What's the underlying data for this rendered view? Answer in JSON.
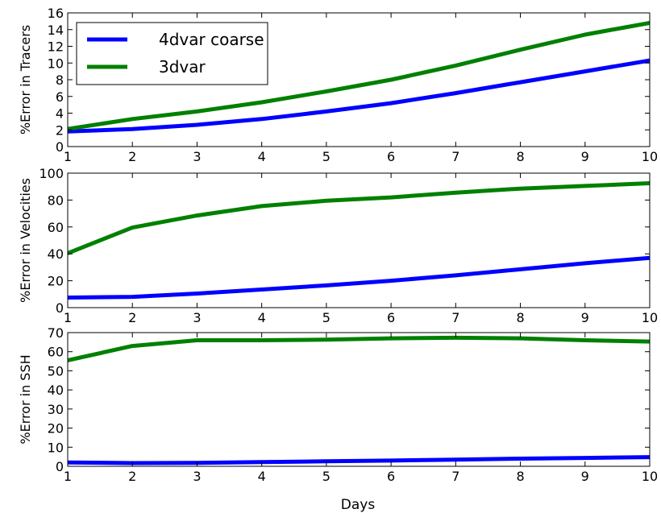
{
  "figure": {
    "x_label": "Days",
    "colors": {
      "4dvar_coarse": "#0000ff",
      "3dvar": "#008000"
    }
  },
  "chart_data": [
    {
      "type": "line",
      "ylabel": "%Error in Tracers",
      "xlabel": "",
      "xlim": [
        1,
        10
      ],
      "ylim": [
        0,
        16
      ],
      "x_ticks": [
        1,
        2,
        3,
        4,
        5,
        6,
        7,
        8,
        9,
        10
      ],
      "y_ticks": [
        0,
        2,
        4,
        6,
        8,
        10,
        12,
        14,
        16
      ],
      "x": [
        1,
        2,
        3,
        4,
        5,
        6,
        7,
        8,
        9,
        10
      ],
      "legend": {
        "position": "upper-left",
        "entries": [
          "4dvar coarse",
          "3dvar"
        ]
      },
      "series": [
        {
          "name": "4dvar coarse",
          "color": "#0000ff",
          "values": [
            1.8,
            2.1,
            2.6,
            3.3,
            4.2,
            5.2,
            6.4,
            7.7,
            9.0,
            10.3
          ]
        },
        {
          "name": "3dvar",
          "color": "#008000",
          "values": [
            2.1,
            3.3,
            4.2,
            5.3,
            6.6,
            8.0,
            9.7,
            11.6,
            13.4,
            14.8
          ]
        }
      ]
    },
    {
      "type": "line",
      "ylabel": "%Error in Velocities",
      "xlabel": "",
      "xlim": [
        1,
        10
      ],
      "ylim": [
        0,
        100
      ],
      "x_ticks": [
        1,
        2,
        3,
        4,
        5,
        6,
        7,
        8,
        9,
        10
      ],
      "y_ticks": [
        0,
        20,
        40,
        60,
        80,
        100
      ],
      "x": [
        1,
        2,
        3,
        4,
        5,
        6,
        7,
        8,
        9,
        10
      ],
      "series": [
        {
          "name": "4dvar coarse",
          "color": "#0000ff",
          "values": [
            7.5,
            8.0,
            10.5,
            13.5,
            16.5,
            20.0,
            24.0,
            28.5,
            33.0,
            37.0
          ]
        },
        {
          "name": "3dvar",
          "color": "#008000",
          "values": [
            40.5,
            59.5,
            68.5,
            75.5,
            79.5,
            82.0,
            85.5,
            88.5,
            90.5,
            92.5
          ]
        }
      ]
    },
    {
      "type": "line",
      "ylabel": "%Error in SSH",
      "xlabel": "Days",
      "xlim": [
        1,
        10
      ],
      "ylim": [
        0,
        70
      ],
      "x_ticks": [
        1,
        2,
        3,
        4,
        5,
        6,
        7,
        8,
        9,
        10
      ],
      "y_ticks": [
        0,
        10,
        20,
        30,
        40,
        50,
        60,
        70
      ],
      "x": [
        1,
        2,
        3,
        4,
        5,
        6,
        7,
        8,
        9,
        10
      ],
      "series": [
        {
          "name": "4dvar coarse",
          "color": "#0000ff",
          "values": [
            2.0,
            1.7,
            1.8,
            2.2,
            2.6,
            3.0,
            3.5,
            4.0,
            4.4,
            4.8
          ]
        },
        {
          "name": "3dvar",
          "color": "#008000",
          "values": [
            55.5,
            63.0,
            66.0,
            66.0,
            66.3,
            67.0,
            67.3,
            67.0,
            66.0,
            65.3
          ]
        }
      ]
    }
  ]
}
